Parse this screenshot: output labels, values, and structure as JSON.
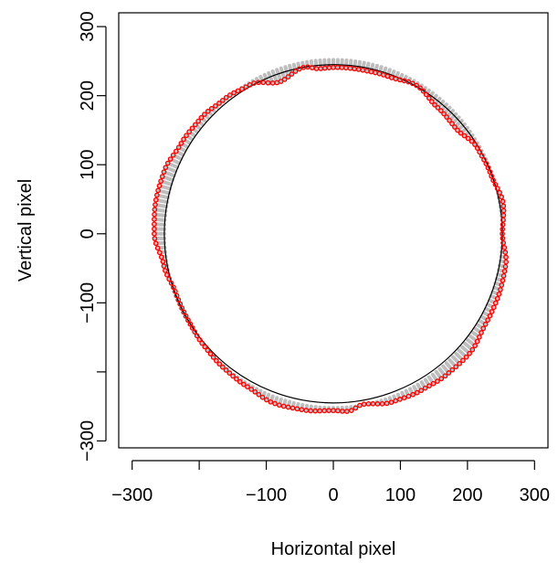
{
  "chart_data": {
    "type": "scatter",
    "title": "",
    "xlabel": "Horizontal pixel",
    "ylabel": "Vertical pixel",
    "xlim": [
      -320,
      320
    ],
    "ylim": [
      -310,
      320
    ],
    "xticks": [
      -300,
      -200,
      -100,
      0,
      100,
      200,
      300
    ],
    "xtick_labels": [
      "−300",
      "",
      "−100",
      "0",
      "100",
      "200",
      "300"
    ],
    "yticks": [
      -300,
      -200,
      -100,
      0,
      100,
      200,
      300
    ],
    "ytick_labels": [
      "−300",
      "",
      "−100",
      "0",
      "100",
      "200",
      "300"
    ],
    "grid": false,
    "legend": "none",
    "reference_circle": {
      "center": [
        0,
        0
      ],
      "radius": 252,
      "color": "#000000"
    },
    "series": [
      {
        "role": "displacement-segments",
        "color": "#bebebe",
        "note_points": "connects each point on the reference circle to the matching measured point"
      },
      {
        "role": "measured-points",
        "color": "#ff0000",
        "points_polar_deg_radius": [
          [
            0,
            252
          ],
          [
            10,
            257
          ],
          [
            20,
            250
          ],
          [
            30,
            248
          ],
          [
            40,
            238
          ],
          [
            50,
            240
          ],
          [
            60,
            248
          ],
          [
            70,
            242
          ],
          [
            80,
            241
          ],
          [
            88,
            241
          ],
          [
            95,
            240
          ],
          [
            100,
            245
          ],
          [
            110,
            234
          ],
          [
            120,
            249
          ],
          [
            130,
            254
          ],
          [
            140,
            259
          ],
          [
            150,
            262
          ],
          [
            160,
            268
          ],
          [
            170,
            269
          ],
          [
            180,
            267
          ],
          [
            190,
            257
          ],
          [
            200,
            250
          ],
          [
            210,
            250
          ],
          [
            220,
            252
          ],
          [
            230,
            254
          ],
          [
            240,
            256
          ],
          [
            250,
            261
          ],
          [
            260,
            259
          ],
          [
            270,
            256
          ],
          [
            275,
            258
          ],
          [
            280,
            251
          ],
          [
            290,
            259
          ],
          [
            300,
            262
          ],
          [
            310,
            265
          ],
          [
            320,
            267
          ],
          [
            330,
            262
          ],
          [
            340,
            262
          ],
          [
            350,
            261
          ],
          [
            360,
            252
          ]
        ]
      }
    ]
  }
}
